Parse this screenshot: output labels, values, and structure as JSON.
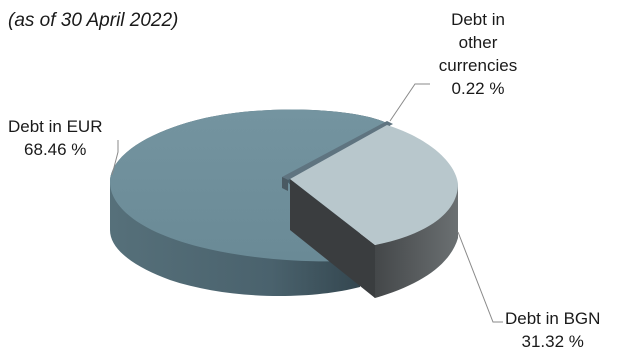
{
  "chart_data": {
    "type": "pie",
    "subtitle": "(as of 30 April 2022)",
    "slices": [
      {
        "label_lines": [
          "Debt in EUR"
        ],
        "value": 68.46,
        "value_text": "68.46 %",
        "color": "#6f8e99"
      },
      {
        "label_lines": [
          "Debt in BGN"
        ],
        "value": 31.32,
        "value_text": "31.32 %",
        "color": "#b8c7cc"
      },
      {
        "label_lines": [
          "Debt in",
          "other",
          "currencies"
        ],
        "value": 0.22,
        "value_text": "0.22 %",
        "color": "#5f7480"
      }
    ]
  }
}
